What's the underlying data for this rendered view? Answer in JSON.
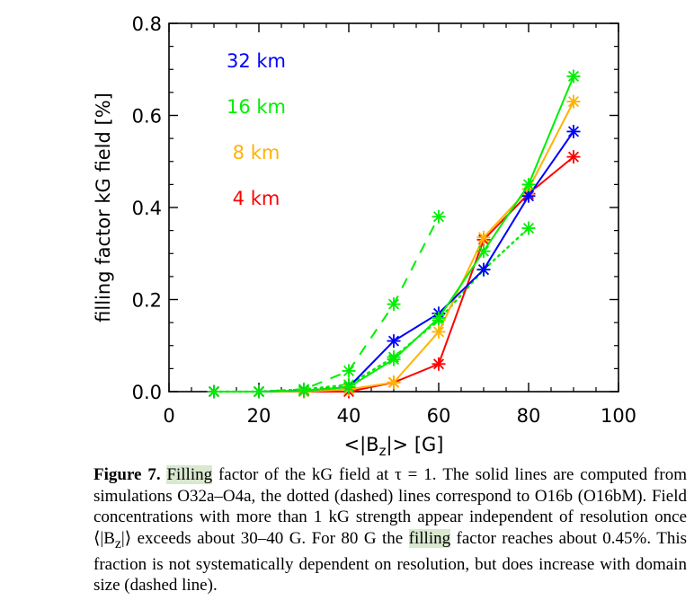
{
  "chart_data": {
    "type": "line",
    "xlabel_parts": {
      "pre": "<|B",
      "sub": "z",
      "post": "|>  [G]"
    },
    "ylabel": "filling factor kG field [%]",
    "xlim": [
      0,
      100
    ],
    "ylim": [
      0,
      0.8
    ],
    "xticks": [
      0,
      20,
      40,
      60,
      80,
      100
    ],
    "xtick_labels": [
      "0",
      "20",
      "40",
      "60",
      "80",
      "100"
    ],
    "yticks": [
      0,
      0.2,
      0.4,
      0.6,
      0.8
    ],
    "ytick_labels": [
      "0.0",
      "0.2",
      "0.4",
      "0.6",
      "0.8"
    ],
    "legend_placement": "top-left",
    "series": [
      {
        "name": "32 km",
        "color": "#0000ff",
        "style": "solid",
        "x": [
          10,
          20,
          30,
          40,
          50,
          60,
          70,
          80,
          90
        ],
        "y": [
          0.0,
          0.0,
          0.002,
          0.01,
          0.11,
          0.17,
          0.265,
          0.425,
          0.565
        ]
      },
      {
        "name": "16 km",
        "color": "#00ee00",
        "style": "solid",
        "x": [
          10,
          20,
          30,
          40,
          50,
          60,
          70,
          80,
          90
        ],
        "y": [
          0.0,
          0.0,
          0.002,
          0.01,
          0.07,
          0.16,
          0.305,
          0.45,
          0.685
        ]
      },
      {
        "name": "8 km",
        "color": "#ffb300",
        "style": "solid",
        "x": [
          10,
          20,
          30,
          40,
          50,
          60,
          70,
          80,
          90
        ],
        "y": [
          0.0,
          0.0,
          0.0,
          0.005,
          0.02,
          0.13,
          0.335,
          0.44,
          0.63
        ]
      },
      {
        "name": "4 km",
        "color": "#ff0000",
        "style": "solid",
        "x": [
          10,
          20,
          30,
          40,
          50,
          60,
          70,
          80,
          90
        ],
        "y": [
          0.0,
          0.0,
          0.0,
          0.0,
          0.02,
          0.06,
          0.33,
          0.43,
          0.51
        ]
      },
      {
        "color": "#00ee00",
        "style": "dotted",
        "x": [
          10,
          20,
          30,
          40,
          50,
          60,
          70,
          80
        ],
        "y": [
          0.0,
          0.0,
          0.005,
          0.015,
          0.075,
          0.155,
          0.265,
          0.355
        ]
      },
      {
        "color": "#00ee00",
        "style": "dashed",
        "x": [
          10,
          20,
          30,
          40,
          50,
          60
        ],
        "y": [
          0.0,
          0.0,
          0.005,
          0.045,
          0.19,
          0.38
        ]
      }
    ]
  },
  "caption": {
    "label": "Figure 7.",
    "parts": [
      {
        "text": " ",
        "hl": false
      },
      {
        "text": "Filling",
        "hl": true
      },
      {
        "text": " factor of the kG field at τ = 1. The solid lines are computed from simulations O32a–O4a, the dotted (dashed) lines correspond to O16b (O16bM). Field concentrations with more than 1 kG strength appear independent of resolution once ⟨|B",
        "hl": false
      },
      {
        "text": "z",
        "hl": false,
        "sub": true
      },
      {
        "text": "|⟩ exceeds about 30–40 G. For 80 G the ",
        "hl": false
      },
      {
        "text": "filling",
        "hl": true
      },
      {
        "text": " factor reaches about 0.45%. This fraction is not systematically dependent on resolution, but does increase with domain size (dashed line).",
        "hl": false
      }
    ]
  }
}
